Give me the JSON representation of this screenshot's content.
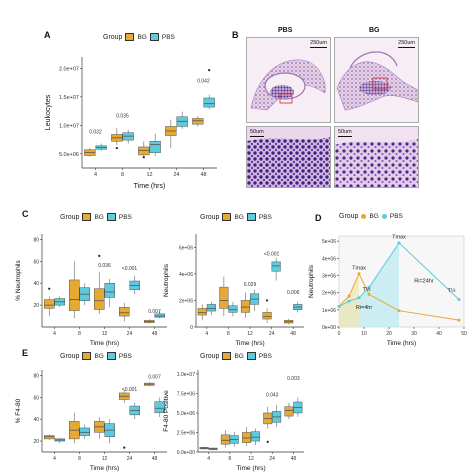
{
  "figure": {
    "colors": {
      "BG": "#E6A934",
      "PBS": "#5CCBDD",
      "axis": "#333333",
      "median": "#555555",
      "outlier": "#222222",
      "area_bg": "#F3E6B4",
      "area_pbs": "#BDEAF0"
    },
    "panel_labels": {
      "A": "A",
      "B": "B",
      "C": "C",
      "D": "D",
      "E": "E"
    },
    "legend": {
      "title": "Group",
      "bg": "BG",
      "pbs": "PBS"
    }
  },
  "histology": {
    "pbs_title": "PBS",
    "bg_title": "BG",
    "scale_top": "250um",
    "scale_bottom": "50um"
  },
  "chart_data": [
    {
      "id": "A",
      "type": "box",
      "xlabel": "Time (hrs)",
      "ylabel": "Leukocytes",
      "categories": [
        "4",
        "8",
        "12",
        "24",
        "48"
      ],
      "yticks": [
        "5.0e+06",
        "1.0e+07",
        "1.5e+07",
        "2.0e+07"
      ],
      "ylim": [
        2500000,
        22000000
      ],
      "annotations": [
        {
          "category": "4",
          "text": "0.032",
          "y": 8600000
        },
        {
          "category": "8",
          "text": "0.035",
          "y": 11400000
        },
        {
          "category": "48",
          "text": "0.042",
          "y": 17500000
        }
      ],
      "series": [
        {
          "name": "BG",
          "boxes": [
            {
              "min": 4500000,
              "q1": 4700000,
              "median": 5200000,
              "q3": 5700000,
              "max": 6000000
            },
            {
              "min": 6500000,
              "q1": 7200000,
              "median": 7800000,
              "q3": 8400000,
              "max": 9500000
            },
            {
              "min": 4200000,
              "q1": 4800000,
              "median": 5600000,
              "q3": 6200000,
              "max": 7200000
            },
            {
              "min": 6000000,
              "q1": 8200000,
              "median": 9000000,
              "q3": 9800000,
              "max": 11000000
            },
            {
              "min": 9800000,
              "q1": 10200000,
              "median": 10800000,
              "q3": 11200000,
              "max": 11600000
            }
          ],
          "outliers": [
            [
              1,
              6000000
            ],
            [
              2,
              4400000
            ]
          ]
        },
        {
          "name": "PBS",
          "boxes": [
            {
              "min": 5500000,
              "q1": 5800000,
              "median": 6100000,
              "q3": 6400000,
              "max": 6800000
            },
            {
              "min": 6800000,
              "q1": 7400000,
              "median": 8100000,
              "q3": 8700000,
              "max": 9200000
            },
            {
              "min": 4600000,
              "q1": 5200000,
              "median": 6600000,
              "q3": 7200000,
              "max": 8500000
            },
            {
              "min": 9400000,
              "q1": 9800000,
              "median": 10700000,
              "q3": 11500000,
              "max": 12400000
            },
            {
              "min": 12800000,
              "q1": 13200000,
              "median": 13800000,
              "q3": 14800000,
              "max": 15400000
            }
          ],
          "outliers": [
            [
              4,
              19700000
            ]
          ]
        }
      ]
    },
    {
      "id": "C1",
      "type": "box",
      "xlabel": "Time (hrs)",
      "ylabel": "% Neutrophils",
      "categories": [
        "4",
        "8",
        "12",
        "24",
        "48"
      ],
      "yticks": [
        "20",
        "40",
        "60",
        "80"
      ],
      "ylim": [
        0,
        85
      ],
      "annotations": [
        {
          "category": "12",
          "text": "0.036",
          "y": 55
        },
        {
          "category": "24",
          "text": "<0.001",
          "y": 52
        },
        {
          "category": "48",
          "text": "0.007",
          "y": 13
        }
      ],
      "series": [
        {
          "name": "BG",
          "boxes": [
            {
              "min": 10,
              "q1": 17,
              "median": 20,
              "q3": 25,
              "max": 28
            },
            {
              "min": 8,
              "q1": 15,
              "median": 25,
              "q3": 43,
              "max": 60
            },
            {
              "min": 12,
              "q1": 16,
              "median": 24,
              "q3": 35,
              "max": 50
            },
            {
              "min": 5,
              "q1": 10,
              "median": 13,
              "q3": 18,
              "max": 22
            },
            {
              "min": 3,
              "q1": 4,
              "median": 5,
              "q3": 6,
              "max": 7
            }
          ],
          "outliers": [
            [
              0,
              35
            ],
            [
              2,
              65
            ]
          ]
        },
        {
          "name": "PBS",
          "boxes": [
            {
              "min": 18,
              "q1": 20,
              "median": 23,
              "q3": 26,
              "max": 28
            },
            {
              "min": 20,
              "q1": 24,
              "median": 30,
              "q3": 36,
              "max": 40
            },
            {
              "min": 18,
              "q1": 27,
              "median": 32,
              "q3": 40,
              "max": 44
            },
            {
              "min": 30,
              "q1": 34,
              "median": 38,
              "q3": 42,
              "max": 47
            },
            {
              "min": 8,
              "q1": 9,
              "median": 10,
              "q3": 12,
              "max": 14
            }
          ],
          "outliers": []
        }
      ]
    },
    {
      "id": "C2",
      "type": "box",
      "xlabel": "Time (hrs)",
      "ylabel": "Neutrophils",
      "categories": [
        "4",
        "8",
        "12",
        "24",
        "48"
      ],
      "yticks": [
        "0",
        "2e+06",
        "4e+06",
        "6e+06"
      ],
      "ylim": [
        0,
        7000000
      ],
      "annotations": [
        {
          "category": "12",
          "text": "0.029",
          "y": 3100000
        },
        {
          "category": "24",
          "text": "<0.001",
          "y": 5400000
        },
        {
          "category": "48",
          "text": "0.006",
          "y": 2500000
        }
      ],
      "series": [
        {
          "name": "BG",
          "boxes": [
            {
              "min": 500000,
              "q1": 900000,
              "median": 1100000,
              "q3": 1400000,
              "max": 1700000
            },
            {
              "min": 800000,
              "q1": 1400000,
              "median": 2000000,
              "q3": 3000000,
              "max": 3800000
            },
            {
              "min": 700000,
              "q1": 1100000,
              "median": 1500000,
              "q3": 2000000,
              "max": 2600000
            },
            {
              "min": 300000,
              "q1": 600000,
              "median": 800000,
              "q3": 1100000,
              "max": 1400000
            },
            {
              "min": 200000,
              "q1": 300000,
              "median": 400000,
              "q3": 500000,
              "max": 600000
            }
          ],
          "outliers": [
            [
              3,
              2000000
            ]
          ]
        },
        {
          "name": "PBS",
          "boxes": [
            {
              "min": 900000,
              "q1": 1200000,
              "median": 1400000,
              "q3": 1700000,
              "max": 1900000
            },
            {
              "min": 800000,
              "q1": 1100000,
              "median": 1300000,
              "q3": 1600000,
              "max": 1900000
            },
            {
              "min": 1200000,
              "q1": 1700000,
              "median": 2100000,
              "q3": 2500000,
              "max": 2800000
            },
            {
              "min": 3500000,
              "q1": 4200000,
              "median": 4600000,
              "q3": 4900000,
              "max": 5200000
            },
            {
              "min": 1100000,
              "q1": 1300000,
              "median": 1500000,
              "q3": 1700000,
              "max": 1900000
            }
          ],
          "outliers": []
        }
      ]
    },
    {
      "id": "D",
      "type": "area",
      "xlabel": "Time (hrs)",
      "ylabel": "Neutrophils",
      "xticks": [
        "0",
        "10",
        "20",
        "30",
        "40",
        "50"
      ],
      "yticks": [
        "0e+00",
        "1e+06",
        "2e+06",
        "3e+06",
        "4e+06",
        "5e+06"
      ],
      "xlim": [
        0,
        50
      ],
      "ylim": [
        0,
        5300000
      ],
      "series": [
        {
          "name": "BG",
          "x": [
            0,
            4,
            8,
            12,
            24,
            48
          ],
          "y": [
            1200000,
            1800000,
            3100000,
            1900000,
            950000,
            400000
          ]
        },
        {
          "name": "PBS",
          "x": [
            0,
            4,
            8,
            12,
            24,
            48
          ],
          "y": [
            1200000,
            1500000,
            1700000,
            2300000,
            4900000,
            1600000
          ]
        }
      ],
      "annotations": [
        {
          "text": "Tmax",
          "x": 8,
          "y": 3350000
        },
        {
          "text": "Tmax",
          "x": 24,
          "y": 5150000
        },
        {
          "text": "T½",
          "x": 11,
          "y": 2100000
        },
        {
          "text": "T½",
          "x": 45,
          "y": 2050000
        },
        {
          "text": "Ri=24hr",
          "x": 34,
          "y": 2600000
        },
        {
          "text": "Ri=4hr",
          "x": 10,
          "y": 1050000
        }
      ]
    },
    {
      "id": "E1",
      "type": "box",
      "xlabel": "Time (hrs)",
      "ylabel": "% F4-80",
      "categories": [
        "4",
        "8",
        "12",
        "24",
        "48"
      ],
      "yticks": [
        "20",
        "40",
        "60",
        "80"
      ],
      "ylim": [
        10,
        85
      ],
      "annotations": [
        {
          "category": "24",
          "text": "<0.001",
          "y": 66
        },
        {
          "category": "48",
          "text": "0.007",
          "y": 77
        }
      ],
      "series": [
        {
          "name": "BG",
          "boxes": [
            {
              "min": 21,
              "q1": 22,
              "median": 24,
              "q3": 25,
              "max": 26
            },
            {
              "min": 18,
              "q1": 22,
              "median": 30,
              "q3": 38,
              "max": 46
            },
            {
              "min": 22,
              "q1": 28,
              "median": 33,
              "q3": 38,
              "max": 42
            },
            {
              "min": 55,
              "q1": 58,
              "median": 61,
              "q3": 64,
              "max": 67
            },
            {
              "min": 70,
              "q1": 71,
              "median": 72,
              "q3": 73,
              "max": 74
            }
          ],
          "outliers": [
            [
              3,
              14
            ]
          ]
        },
        {
          "name": "PBS",
          "boxes": [
            {
              "min": 18,
              "q1": 20,
              "median": 21,
              "q3": 22,
              "max": 23
            },
            {
              "min": 22,
              "q1": 25,
              "median": 28,
              "q3": 32,
              "max": 35
            },
            {
              "min": 18,
              "q1": 24,
              "median": 30,
              "q3": 36,
              "max": 40
            },
            {
              "min": 40,
              "q1": 44,
              "median": 48,
              "q3": 52,
              "max": 55
            },
            {
              "min": 42,
              "q1": 46,
              "median": 50,
              "q3": 56,
              "max": 60
            }
          ],
          "outliers": []
        }
      ]
    },
    {
      "id": "E2",
      "type": "box",
      "xlabel": "Time (hrs)",
      "ylabel": "F4-80 Positive",
      "categories": [
        "4",
        "8",
        "12",
        "24",
        "48"
      ],
      "yticks": [
        "0.0e+00",
        "2.5e+06",
        "5.0e+06",
        "7.5e+06",
        "1.0e+07"
      ],
      "ylim": [
        0,
        10500000
      ],
      "annotations": [
        {
          "category": "24",
          "text": "0.043",
          "y": 7100000
        },
        {
          "category": "48",
          "text": "0.003",
          "y": 9200000
        }
      ],
      "series": [
        {
          "name": "BG",
          "boxes": [
            {
              "min": 300000,
              "q1": 400000,
              "median": 500000,
              "q3": 600000,
              "max": 700000
            },
            {
              "min": 600000,
              "q1": 1000000,
              "median": 1500000,
              "q3": 2200000,
              "max": 2800000
            },
            {
              "min": 800000,
              "q1": 1200000,
              "median": 1800000,
              "q3": 2500000,
              "max": 3200000
            },
            {
              "min": 3000000,
              "q1": 3600000,
              "median": 4300000,
              "q3": 5000000,
              "max": 5800000
            },
            {
              "min": 4200000,
              "q1": 4600000,
              "median": 5300000,
              "q3": 5800000,
              "max": 6300000
            }
          ],
          "outliers": [
            [
              3,
              1300000
            ]
          ]
        },
        {
          "name": "PBS",
          "boxes": [
            {
              "min": 200000,
              "q1": 300000,
              "median": 400000,
              "q3": 500000,
              "max": 600000
            },
            {
              "min": 700000,
              "q1": 1100000,
              "median": 1600000,
              "q3": 2100000,
              "max": 2600000
            },
            {
              "min": 900000,
              "q1": 1400000,
              "median": 1900000,
              "q3": 2600000,
              "max": 3000000
            },
            {
              "min": 3200000,
              "q1": 3800000,
              "median": 4500000,
              "q3": 5200000,
              "max": 6000000
            },
            {
              "min": 4500000,
              "q1": 5000000,
              "median": 5700000,
              "q3": 6400000,
              "max": 7000000
            }
          ],
          "outliers": []
        }
      ]
    }
  ]
}
